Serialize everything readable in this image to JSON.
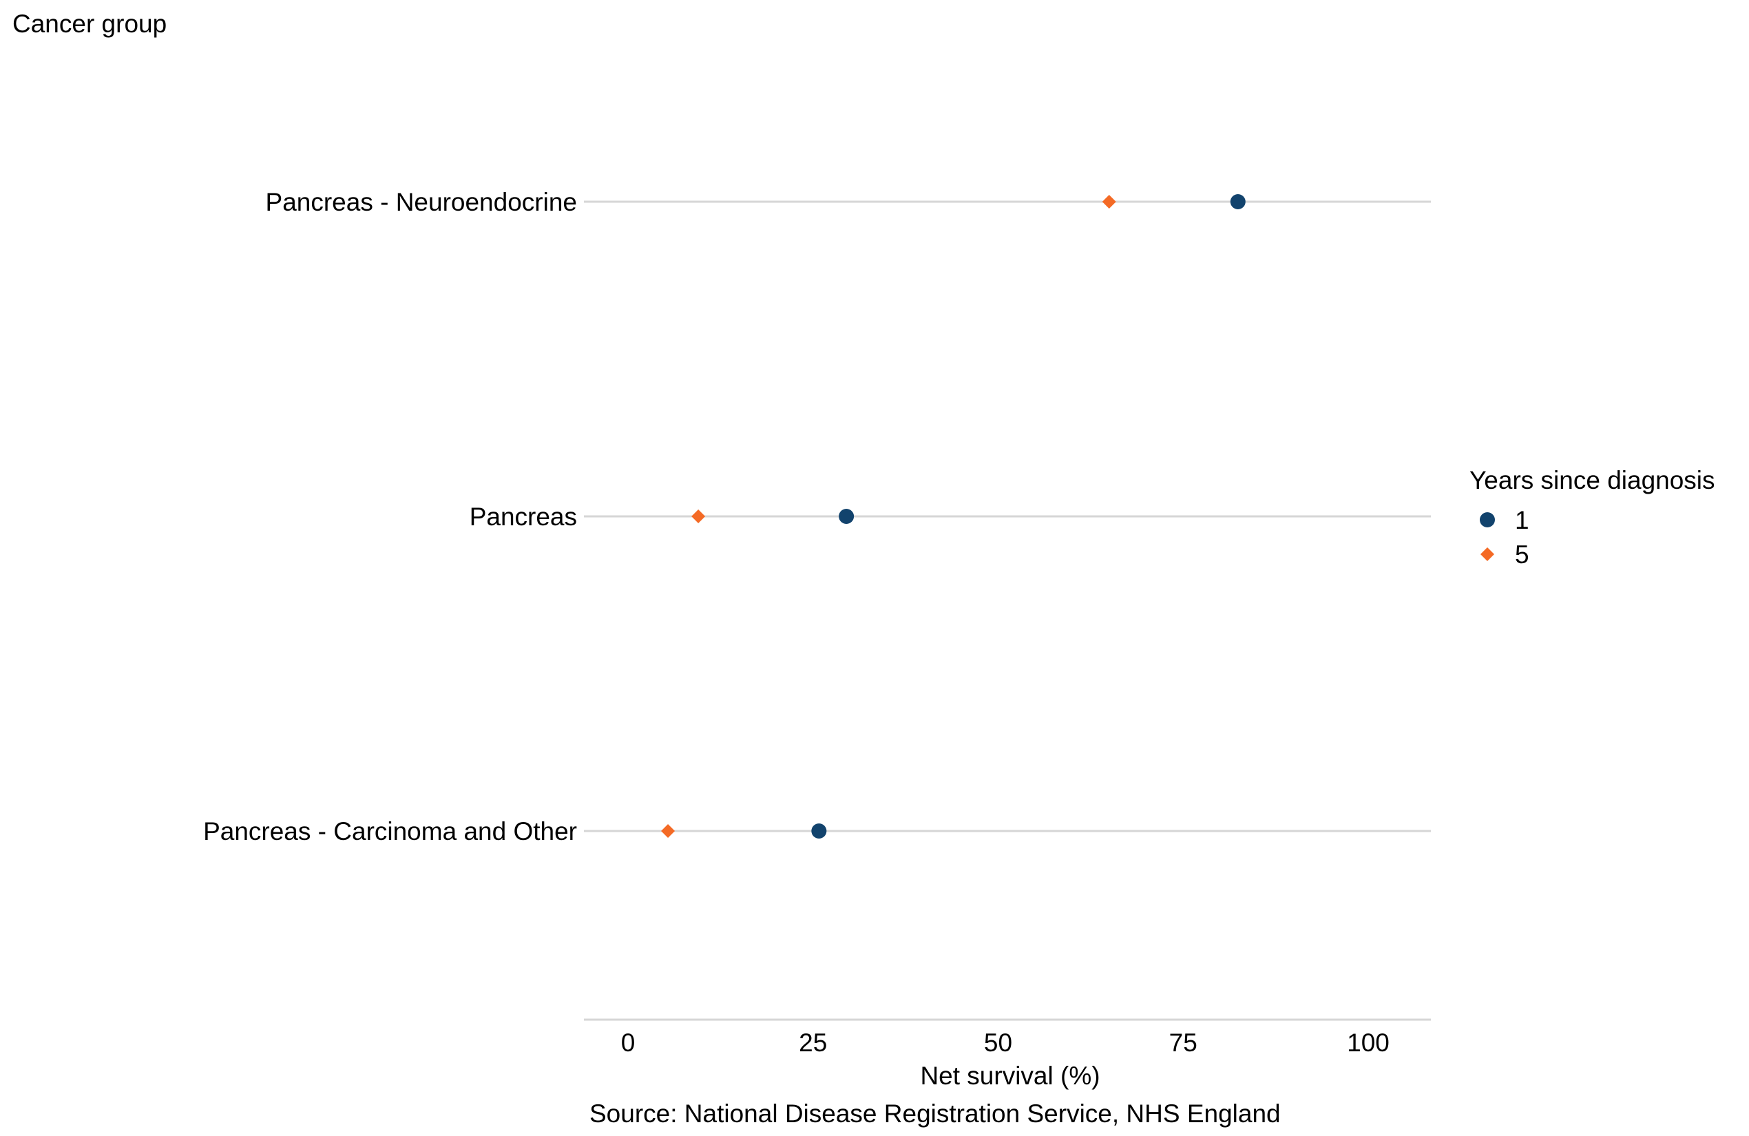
{
  "chart_data": {
    "type": "dot",
    "y_axis_title": "Cancer group",
    "xlabel": "Net survival (%)",
    "caption": "Source: National Disease Registration Service, NHS England",
    "xlim": [
      -5,
      108
    ],
    "x_ticks": [
      0,
      25,
      50,
      75,
      100
    ],
    "x_tick_labels": [
      "0",
      "25",
      "50",
      "75",
      "100"
    ],
    "categories": [
      "Pancreas - Neuroendocrine",
      "Pancreas",
      "Pancreas - Carcinoma and Other"
    ],
    "legend": {
      "title": "Years since diagnosis",
      "position": "right"
    },
    "series": [
      {
        "name": "1",
        "marker": "circle",
        "color": "#12436d",
        "values": [
          82.4,
          29.5,
          25.8
        ]
      },
      {
        "name": "5",
        "marker": "diamond",
        "color": "#f46a25",
        "values": [
          65.0,
          9.5,
          5.4
        ]
      }
    ],
    "grid": "horizontal lines per category",
    "gridline_color": "#d6d6d6"
  }
}
